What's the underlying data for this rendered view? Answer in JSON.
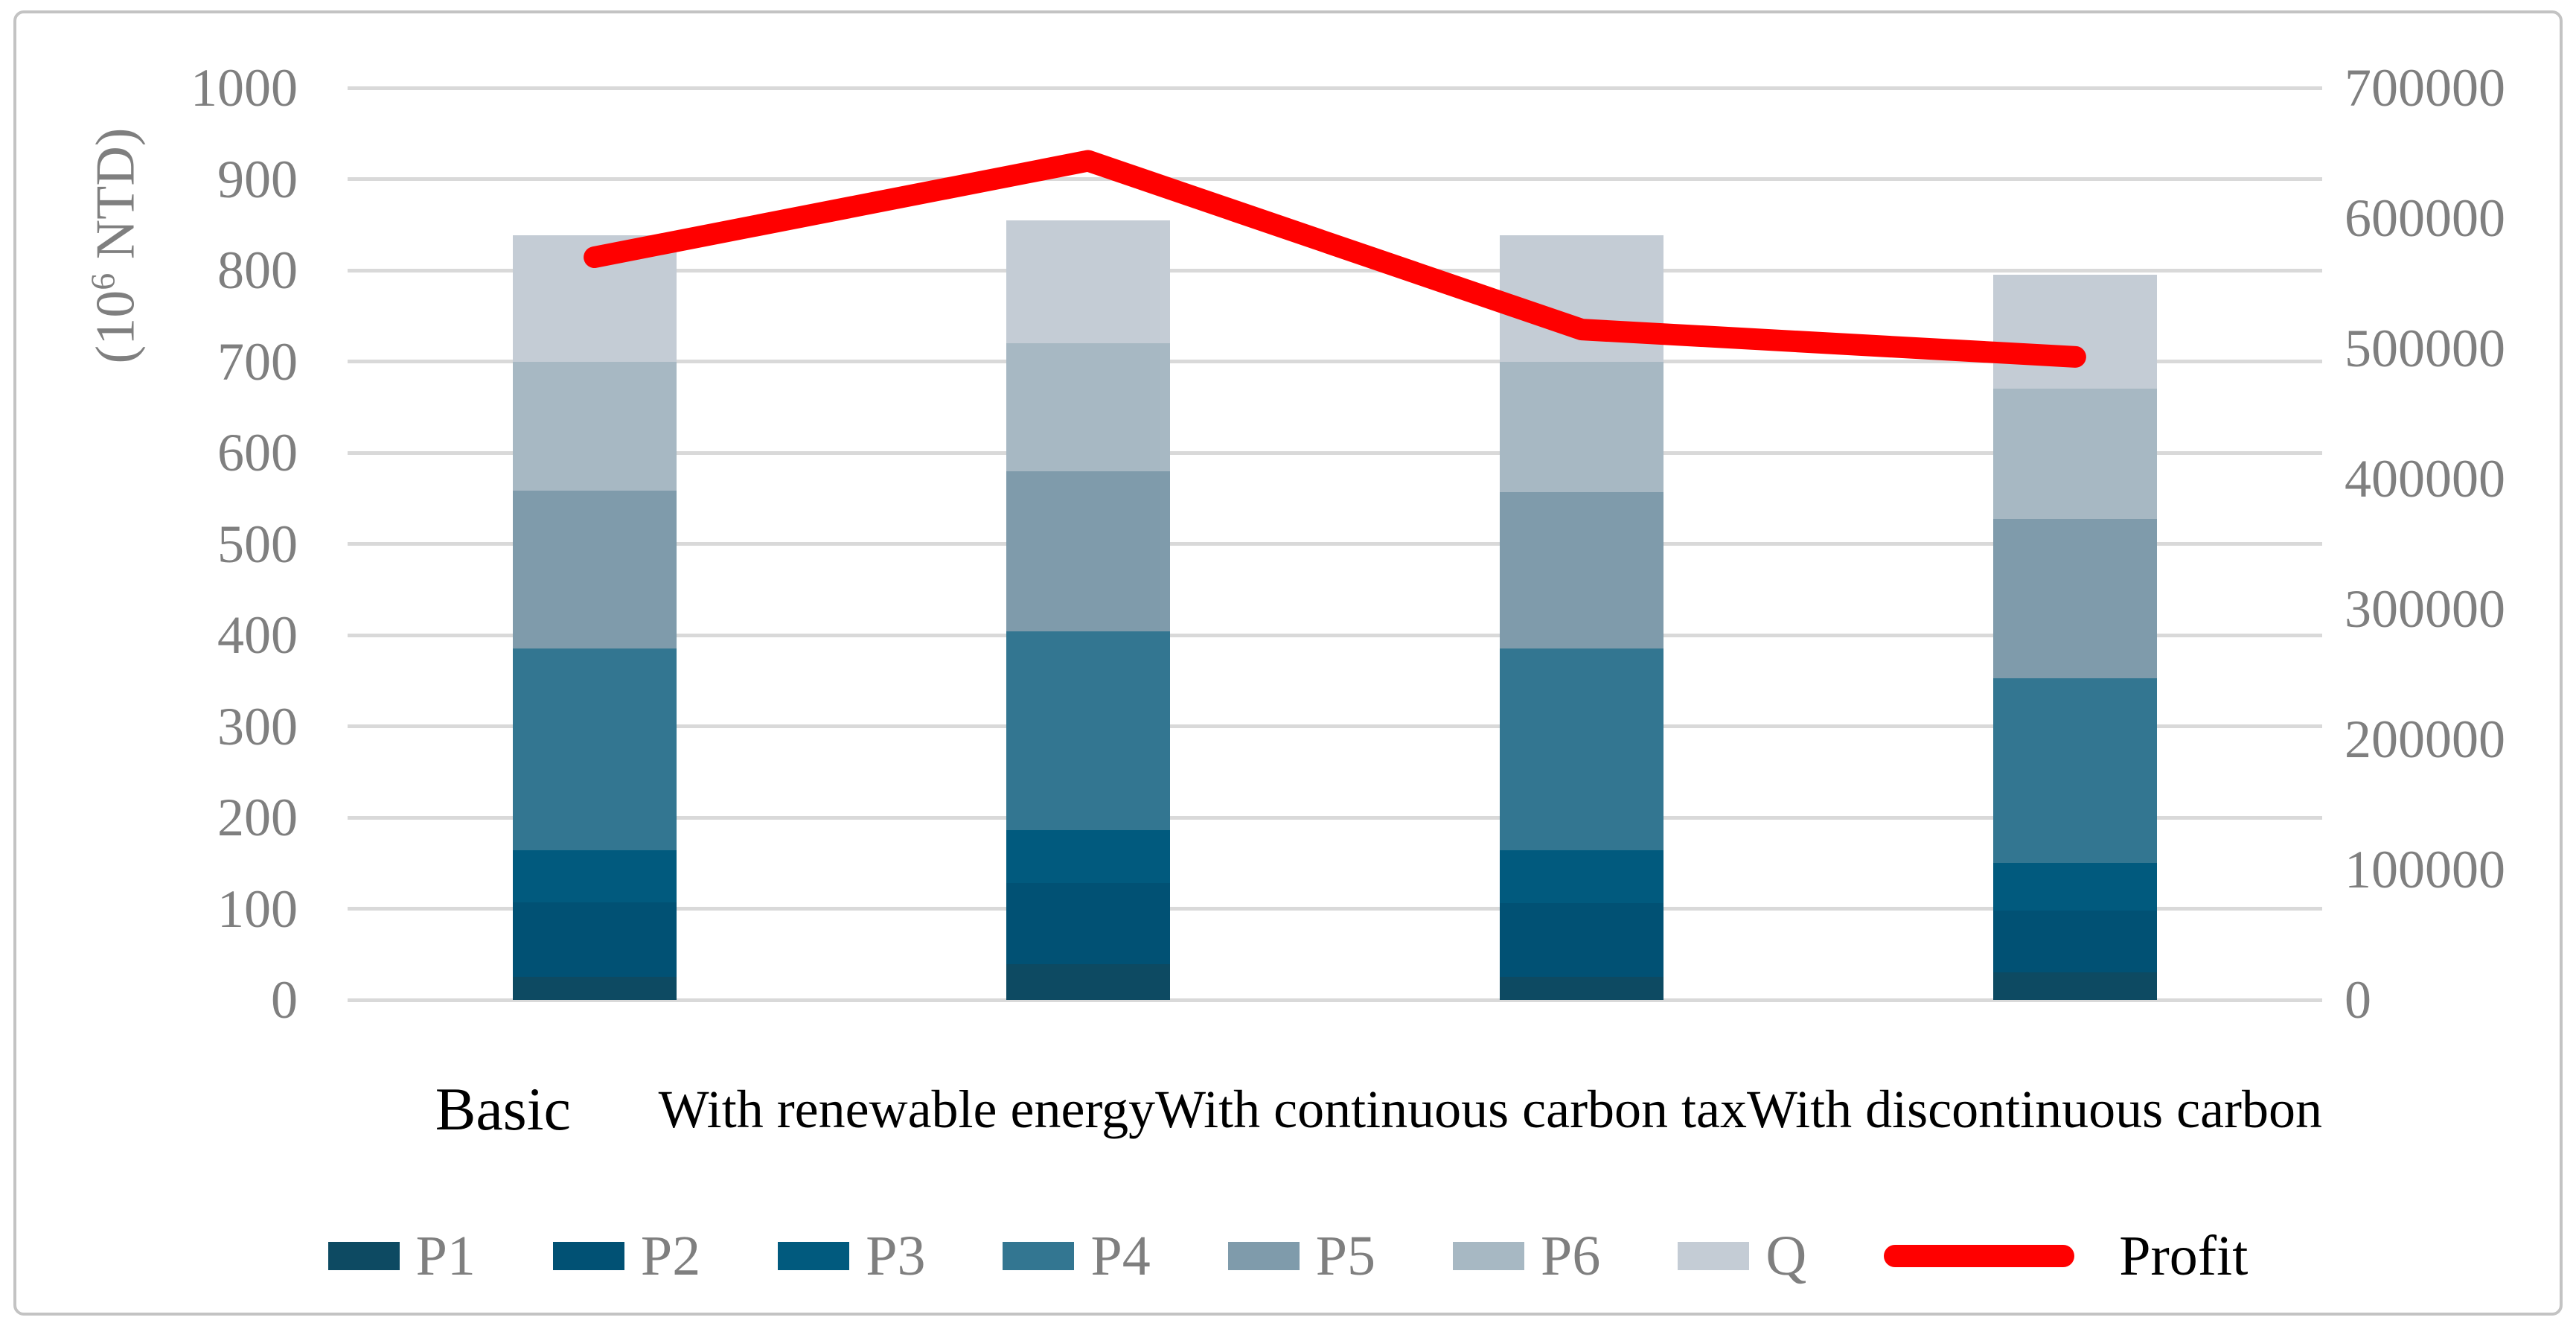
{
  "chart_data": {
    "type": "bar",
    "subtype": "stacked-bar-with-line",
    "categories": [
      "Basic",
      "With renewable energy",
      "With continuous carbon tax",
      "With discontinuous carbon"
    ],
    "series": [
      {
        "name": "P1",
        "color": "#0d4a62",
        "values": [
          25,
          39,
          25,
          30
        ]
      },
      {
        "name": "P2",
        "color": "#015174",
        "values": [
          82,
          89,
          81,
          68
        ]
      },
      {
        "name": "P3",
        "color": "#015a7e",
        "values": [
          57,
          58,
          58,
          52
        ]
      },
      {
        "name": "P4",
        "color": "#337691",
        "values": [
          221,
          218,
          221,
          203
        ]
      },
      {
        "name": "P5",
        "color": "#7f9bab",
        "values": [
          173,
          176,
          172,
          174
        ]
      },
      {
        "name": "P6",
        "color": "#a7b8c3",
        "values": [
          142,
          140,
          143,
          143
        ]
      },
      {
        "name": "Q",
        "color": "#c4ccd5",
        "values": [
          138,
          135,
          138,
          125
        ]
      }
    ],
    "bar_totals": [
      838,
      855,
      838,
      795
    ],
    "line_series": {
      "name": "Profit",
      "color": "#ff0000",
      "axis": "right",
      "values": [
        570000,
        644000,
        514500,
        493500
      ]
    },
    "left_axis": {
      "title_pre": "(10",
      "title_sup": "6",
      "title_post": " NTD)",
      "min": 0,
      "max": 1000,
      "step": 100,
      "tick_labels": [
        "0",
        "100",
        "200",
        "300",
        "400",
        "500",
        "600",
        "700",
        "800",
        "900",
        "1000"
      ]
    },
    "right_axis": {
      "min": 0,
      "max": 700000,
      "step": 100000,
      "tick_labels": [
        "0",
        "100000",
        "200000",
        "300000",
        "400000",
        "500000",
        "600000",
        "700000"
      ]
    },
    "grid": true,
    "legend_position": "bottom",
    "legend_entries": [
      "P1",
      "P2",
      "P3",
      "P4",
      "P5",
      "P6",
      "Q",
      "Profit"
    ]
  },
  "colors": {
    "gridline": "#d9d9d9",
    "axis_text": "#7f7f7f",
    "category_text": "#000000",
    "profit_line": "#ff0000",
    "chart_border": "#c3c3c3",
    "background": "#ffffff"
  }
}
